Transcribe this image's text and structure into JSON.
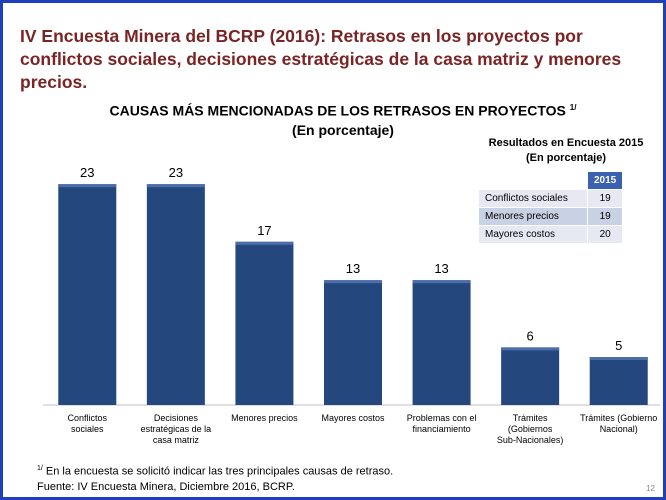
{
  "title": "IV Encuesta Minera del BCRP (2016): Retrasos en los proyectos por conflictos sociales, decisiones estratégicas de la casa matriz y menores precios.",
  "chart_data": {
    "type": "bar",
    "title": "CAUSAS MÁS MENCIONADAS DE LOS RETRASOS EN PROYECTOS",
    "title_footnote_mark": "1/",
    "subtitle": "(En porcentaje)",
    "categories": [
      "Conflictos sociales",
      "Decisiones estratégicas de la casa matriz",
      "Menores precios",
      "Mayores costos",
      "Problemas con el financiamiento",
      "Trámites (Gobiernos Sub-Nacionales)",
      "Trámites (Gobierno Nacional)"
    ],
    "values": [
      23,
      23,
      17,
      13,
      13,
      6,
      5
    ],
    "ylim": [
      0,
      25
    ],
    "grid": false,
    "bar_color": "#24477e"
  },
  "results_table": {
    "title": "Resultados en Encuesta 2015",
    "subtitle": "(En porcentaje)",
    "column_header": "2015",
    "rows": [
      {
        "label": "Conflictos  sociales",
        "value": "19"
      },
      {
        "label": "Menores precios",
        "value": "19"
      },
      {
        "label": "Mayores costos",
        "value": "20"
      }
    ]
  },
  "footnote": {
    "mark": "1/",
    "text": " En la encuesta se solicitó indicar las tres principales causas de retraso.",
    "source": "Fuente:  IV Encuesta Minera, Diciembre 2016, BCRP."
  },
  "page_number": "12"
}
